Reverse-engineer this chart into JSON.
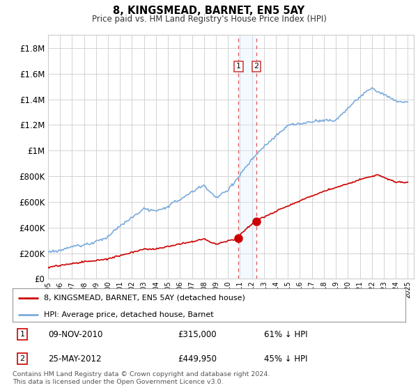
{
  "title": "8, KINGSMEAD, BARNET, EN5 5AY",
  "subtitle": "Price paid vs. HM Land Registry's House Price Index (HPI)",
  "legend_label_red": "8, KINGSMEAD, BARNET, EN5 5AY (detached house)",
  "legend_label_blue": "HPI: Average price, detached house, Barnet",
  "transaction1_label": "1",
  "transaction1_date": "09-NOV-2010",
  "transaction1_price": "£315,000",
  "transaction1_hpi": "61% ↓ HPI",
  "transaction2_label": "2",
  "transaction2_date": "25-MAY-2012",
  "transaction2_price": "£449,950",
  "transaction2_hpi": "45% ↓ HPI",
  "footer": "Contains HM Land Registry data © Crown copyright and database right 2024.\nThis data is licensed under the Open Government Licence v3.0.",
  "ylim": [
    0,
    1900000
  ],
  "yticks": [
    0,
    200000,
    400000,
    600000,
    800000,
    1000000,
    1200000,
    1400000,
    1600000,
    1800000
  ],
  "ytick_labels": [
    "£0",
    "£200K",
    "£400K",
    "£600K",
    "£800K",
    "£1M",
    "£1.2M",
    "£1.4M",
    "£1.6M",
    "£1.8M"
  ],
  "color_red": "#cc0000",
  "color_blue": "#7aabdc",
  "color_highlight": "#ddeeff",
  "background_color": "#ffffff",
  "grid_color": "#cccccc",
  "t1_year": 2010.875,
  "t1_price": 315000,
  "t2_year": 2012.375,
  "t2_price": 449950
}
